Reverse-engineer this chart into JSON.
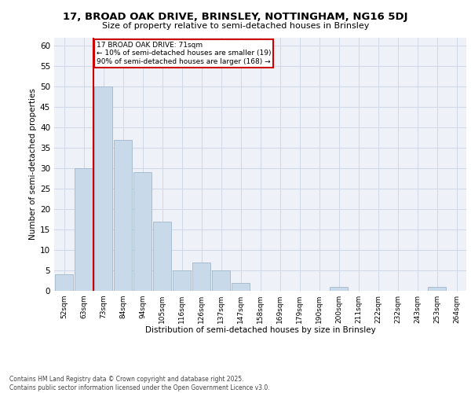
{
  "title_line1": "17, BROAD OAK DRIVE, BRINSLEY, NOTTINGHAM, NG16 5DJ",
  "title_line2": "Size of property relative to semi-detached houses in Brinsley",
  "xlabel": "Distribution of semi-detached houses by size in Brinsley",
  "ylabel": "Number of semi-detached properties",
  "categories": [
    "52sqm",
    "63sqm",
    "73sqm",
    "84sqm",
    "94sqm",
    "105sqm",
    "116sqm",
    "126sqm",
    "137sqm",
    "147sqm",
    "158sqm",
    "169sqm",
    "179sqm",
    "190sqm",
    "200sqm",
    "211sqm",
    "222sqm",
    "232sqm",
    "243sqm",
    "253sqm",
    "264sqm"
  ],
  "values": [
    4,
    30,
    50,
    37,
    29,
    17,
    5,
    7,
    5,
    2,
    0,
    0,
    0,
    0,
    1,
    0,
    0,
    0,
    0,
    1,
    0
  ],
  "bar_color": "#c8d9ea",
  "bar_edge_color": "#a0b8cc",
  "grid_color": "#d0d8e8",
  "background_color": "#eef2f8",
  "vline_bar_index": 1,
  "vline_color": "#cc0000",
  "annotation_title": "17 BROAD OAK DRIVE: 71sqm",
  "annotation_line1": "← 10% of semi-detached houses are smaller (19)",
  "annotation_line2": "90% of semi-detached houses are larger (168) →",
  "annotation_box_color": "#cc0000",
  "footer_line1": "Contains HM Land Registry data © Crown copyright and database right 2025.",
  "footer_line2": "Contains public sector information licensed under the Open Government Licence v3.0.",
  "ylim": [
    0,
    62
  ],
  "yticks": [
    0,
    5,
    10,
    15,
    20,
    25,
    30,
    35,
    40,
    45,
    50,
    55,
    60
  ]
}
